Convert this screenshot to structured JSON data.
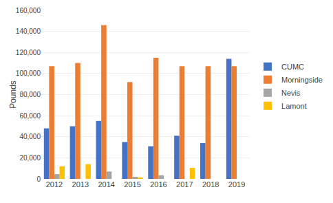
{
  "chart_data": {
    "type": "bar",
    "categories": [
      "2012",
      "2013",
      "2014",
      "2015",
      "2016",
      "2017",
      "2018",
      "2019"
    ],
    "series": [
      {
        "name": "CUMC",
        "color": "#4472C4",
        "values": [
          48000,
          50000,
          55000,
          35000,
          31000,
          41000,
          34000,
          114000
        ]
      },
      {
        "name": "Morningside",
        "color": "#ED7D31",
        "values": [
          107000,
          110000,
          146000,
          92000,
          115000,
          107000,
          107000,
          107000
        ]
      },
      {
        "name": "Nevis",
        "color": "#A5A5A5",
        "values": [
          4500,
          0,
          7000,
          2000,
          3500,
          0,
          0,
          0
        ]
      },
      {
        "name": "Lamont",
        "color": "#FFC000",
        "values": [
          12000,
          14000,
          0,
          1500,
          0,
          10500,
          0,
          0
        ]
      }
    ],
    "ylabel": "Pounds",
    "ylim": [
      0,
      160000
    ],
    "yticks": [
      0,
      {
        "value": 20000,
        "label": "20,000"
      },
      {
        "value": 40000,
        "label": "40,000"
      },
      {
        "value": 60000,
        "label": "60,000"
      },
      {
        "value": 80000,
        "label": "80,000"
      },
      {
        "value": 100000,
        "label": "100,000"
      },
      {
        "value": 120000,
        "label": "120,000"
      },
      {
        "value": 140000,
        "label": "140,000"
      },
      {
        "value": 160000,
        "label": "160,000"
      }
    ],
    "grid": true,
    "legend": "right"
  }
}
